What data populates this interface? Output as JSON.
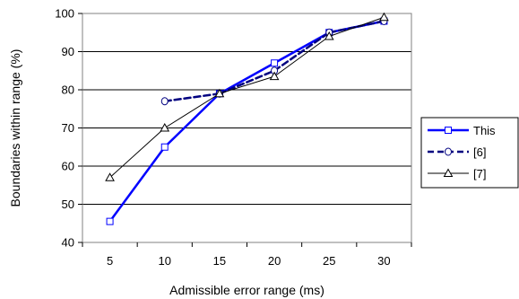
{
  "chart_data": {
    "type": "line",
    "xlabel": "Admissible error range (ms)",
    "ylabel": "Boundaries within range (%)",
    "x": [
      5,
      10,
      15,
      20,
      25,
      30
    ],
    "xticks": [
      "5",
      "10",
      "15",
      "20",
      "25",
      "30"
    ],
    "ylim": [
      40,
      100
    ],
    "yticks": [
      "40",
      "50",
      "60",
      "70",
      "80",
      "90",
      "100"
    ],
    "grid": "horizontal",
    "legend_position": "right",
    "series": [
      {
        "name": "This",
        "values": [
          45.5,
          65,
          79,
          87,
          95,
          98
        ],
        "marker": "square",
        "line_style": "solid",
        "color": "#0000ff"
      },
      {
        "name": "[6]",
        "values": [
          null,
          77,
          79,
          85,
          95,
          98
        ],
        "marker": "circle",
        "line_style": "dashed",
        "color": "#000080"
      },
      {
        "name": "[7]",
        "values": [
          57,
          70,
          79,
          83.5,
          94,
          99
        ],
        "marker": "triangle",
        "line_style": "solid",
        "color": "#000000"
      }
    ]
  }
}
